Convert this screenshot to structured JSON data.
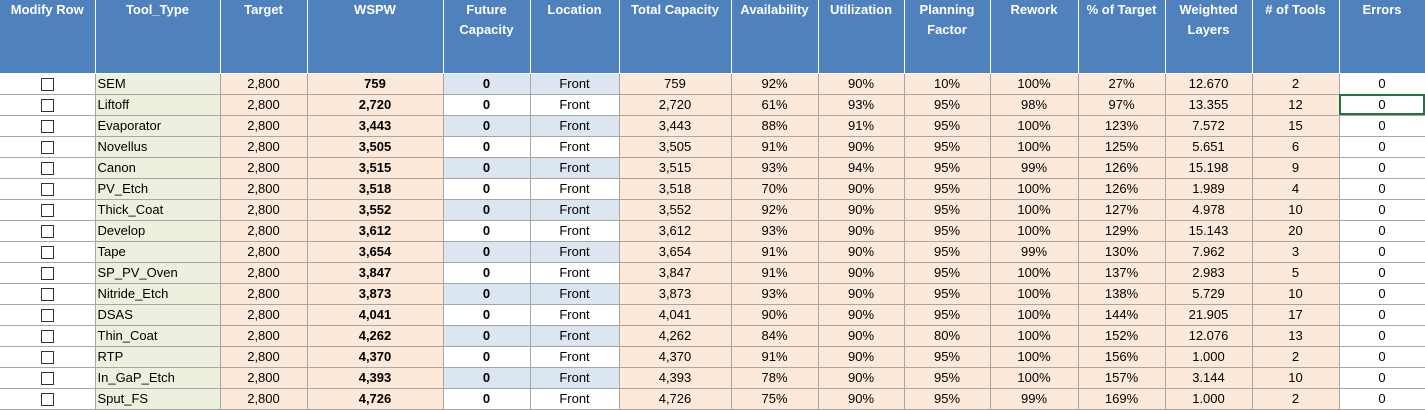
{
  "columns": [
    "Modify Row",
    "Tool_Type",
    "Target",
    "WSPW",
    "Future\nCapacity",
    "Location",
    "Total Capacity",
    "Availability",
    "Utilization",
    "Planning\nFactor",
    "Rework",
    "% of Target",
    "Weighted\nLayers",
    "# of Tools",
    "Errors"
  ],
  "rows": [
    {
      "tool": "SEM",
      "target": "2,800",
      "wspw": "759",
      "future": "0",
      "location": "Front",
      "total": "759",
      "avail": "92%",
      "util": "90%",
      "pf": "10%",
      "rework": "100%",
      "pct": "27%",
      "wl": "12.670",
      "tools": "2",
      "errors": "0"
    },
    {
      "tool": "Liftoff",
      "target": "2,800",
      "wspw": "2,720",
      "future": "0",
      "location": "Front",
      "total": "2,720",
      "avail": "61%",
      "util": "93%",
      "pf": "95%",
      "rework": "98%",
      "pct": "97%",
      "wl": "13.355",
      "tools": "12",
      "errors": "0"
    },
    {
      "tool": "Evaporator",
      "target": "2,800",
      "wspw": "3,443",
      "future": "0",
      "location": "Front",
      "total": "3,443",
      "avail": "88%",
      "util": "91%",
      "pf": "95%",
      "rework": "100%",
      "pct": "123%",
      "wl": "7.572",
      "tools": "15",
      "errors": "0"
    },
    {
      "tool": "Novellus",
      "target": "2,800",
      "wspw": "3,505",
      "future": "0",
      "location": "Front",
      "total": "3,505",
      "avail": "91%",
      "util": "90%",
      "pf": "95%",
      "rework": "100%",
      "pct": "125%",
      "wl": "5.651",
      "tools": "6",
      "errors": "0"
    },
    {
      "tool": "Canon",
      "target": "2,800",
      "wspw": "3,515",
      "future": "0",
      "location": "Front",
      "total": "3,515",
      "avail": "93%",
      "util": "94%",
      "pf": "95%",
      "rework": "99%",
      "pct": "126%",
      "wl": "15.198",
      "tools": "9",
      "errors": "0"
    },
    {
      "tool": "PV_Etch",
      "target": "2,800",
      "wspw": "3,518",
      "future": "0",
      "location": "Front",
      "total": "3,518",
      "avail": "70%",
      "util": "90%",
      "pf": "95%",
      "rework": "100%",
      "pct": "126%",
      "wl": "1.989",
      "tools": "4",
      "errors": "0"
    },
    {
      "tool": "Thick_Coat",
      "target": "2,800",
      "wspw": "3,552",
      "future": "0",
      "location": "Front",
      "total": "3,552",
      "avail": "92%",
      "util": "90%",
      "pf": "95%",
      "rework": "100%",
      "pct": "127%",
      "wl": "4.978",
      "tools": "10",
      "errors": "0"
    },
    {
      "tool": "Develop",
      "target": "2,800",
      "wspw": "3,612",
      "future": "0",
      "location": "Front",
      "total": "3,612",
      "avail": "93%",
      "util": "90%",
      "pf": "95%",
      "rework": "100%",
      "pct": "129%",
      "wl": "15.143",
      "tools": "20",
      "errors": "0"
    },
    {
      "tool": "Tape",
      "target": "2,800",
      "wspw": "3,654",
      "future": "0",
      "location": "Front",
      "total": "3,654",
      "avail": "91%",
      "util": "90%",
      "pf": "95%",
      "rework": "99%",
      "pct": "130%",
      "wl": "7.962",
      "tools": "3",
      "errors": "0"
    },
    {
      "tool": "SP_PV_Oven",
      "target": "2,800",
      "wspw": "3,847",
      "future": "0",
      "location": "Front",
      "total": "3,847",
      "avail": "91%",
      "util": "90%",
      "pf": "95%",
      "rework": "100%",
      "pct": "137%",
      "wl": "2.983",
      "tools": "5",
      "errors": "0"
    },
    {
      "tool": "Nitride_Etch",
      "target": "2,800",
      "wspw": "3,873",
      "future": "0",
      "location": "Front",
      "total": "3,873",
      "avail": "93%",
      "util": "90%",
      "pf": "95%",
      "rework": "100%",
      "pct": "138%",
      "wl": "5.729",
      "tools": "10",
      "errors": "0"
    },
    {
      "tool": "DSAS",
      "target": "2,800",
      "wspw": "4,041",
      "future": "0",
      "location": "Front",
      "total": "4,041",
      "avail": "90%",
      "util": "90%",
      "pf": "95%",
      "rework": "100%",
      "pct": "144%",
      "wl": "21.905",
      "tools": "17",
      "errors": "0"
    },
    {
      "tool": "Thin_Coat",
      "target": "2,800",
      "wspw": "4,262",
      "future": "0",
      "location": "Front",
      "total": "4,262",
      "avail": "84%",
      "util": "90%",
      "pf": "80%",
      "rework": "100%",
      "pct": "152%",
      "wl": "12.076",
      "tools": "13",
      "errors": "0"
    },
    {
      "tool": "RTP",
      "target": "2,800",
      "wspw": "4,370",
      "future": "0",
      "location": "Front",
      "total": "4,370",
      "avail": "91%",
      "util": "90%",
      "pf": "95%",
      "rework": "100%",
      "pct": "156%",
      "wl": "1.000",
      "tools": "2",
      "errors": "0"
    },
    {
      "tool": "In_GaP_Etch",
      "target": "2,800",
      "wspw": "4,393",
      "future": "0",
      "location": "Front",
      "total": "4,393",
      "avail": "78%",
      "util": "90%",
      "pf": "95%",
      "rework": "100%",
      "pct": "157%",
      "wl": "3.144",
      "tools": "10",
      "errors": "0"
    },
    {
      "tool": "Sput_FS",
      "target": "2,800",
      "wspw": "4,726",
      "future": "0",
      "location": "Front",
      "total": "4,726",
      "avail": "75%",
      "util": "90%",
      "pf": "95%",
      "rework": "99%",
      "pct": "169%",
      "wl": "1.000",
      "tools": "2",
      "errors": "0"
    }
  ],
  "colors": {
    "header_bg": "#4f81bd",
    "tool_bg": "#ebf1de",
    "peach_bg": "#fde9d9",
    "blue_bg": "#dce6f1",
    "selection": "#217346"
  }
}
